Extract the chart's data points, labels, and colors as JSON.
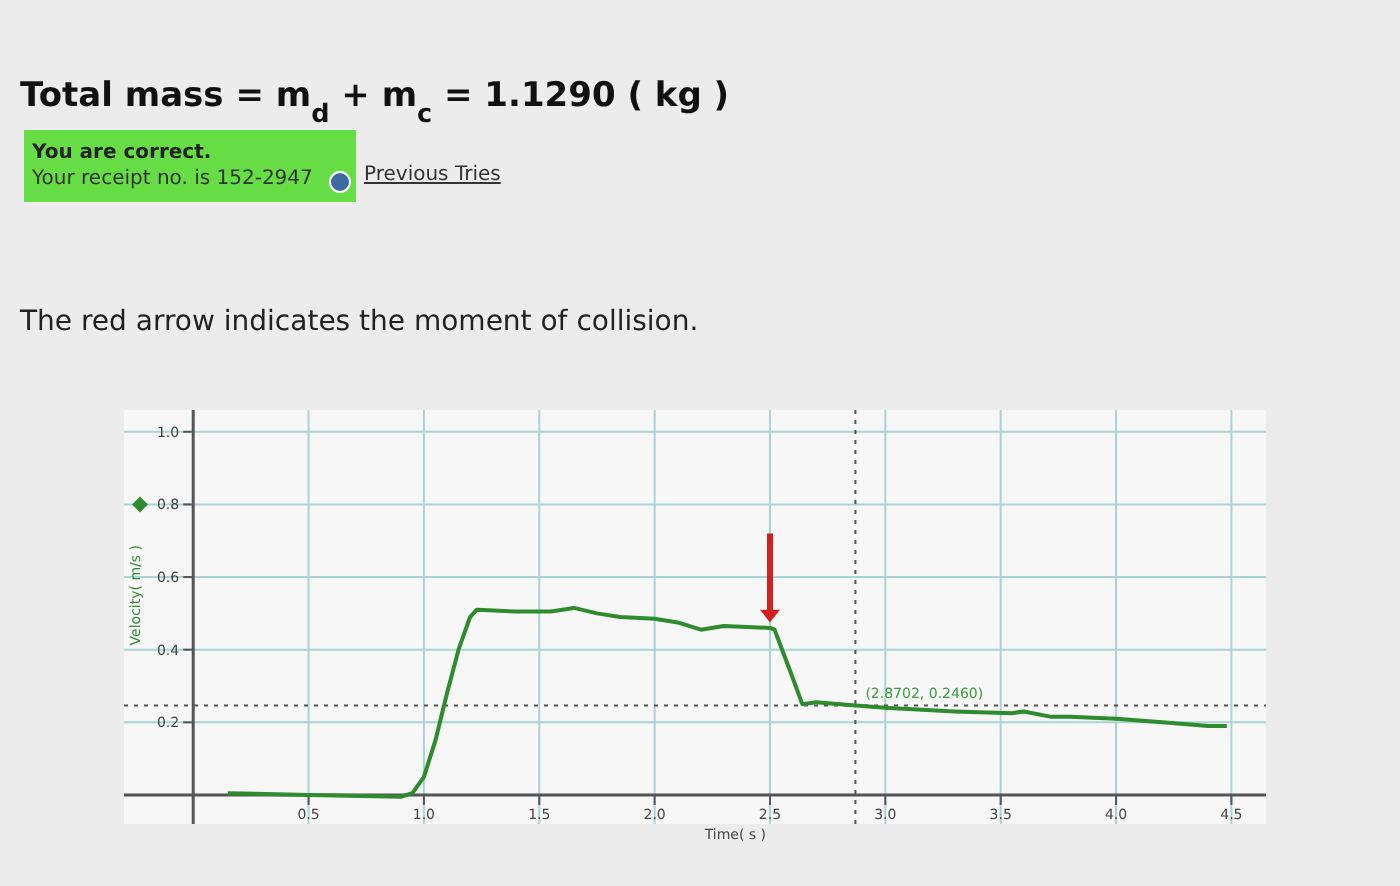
{
  "chart_data": {
    "type": "line",
    "title": "Total mass = m$_{d}$ + m$_{c}$ = 1.1290 ( kg )",
    "annotations": [
      "You are correct.",
      "Your receipt no. is 152-2947",
      "Previous Tries",
      "The red arrow indicates the moment of collision.",
      {
        "text": "(2.8702, 0.2460)",
        "x": 2.8702,
        "y": 0.246
      }
    ],
    "xlabel": "Time( s )",
    "ylabel": "Velocity( m/s )",
    "xlim": [
      -0.3,
      4.65
    ],
    "ylim": [
      -0.08,
      1.06
    ],
    "xticks": [
      0.5,
      {
        "value": 1,
        "label": "1.0"
      },
      1.5,
      {
        "value": 2,
        "label": "2.0"
      },
      2.5,
      {
        "value": 3,
        "label": "3.0"
      },
      3.5,
      {
        "value": 4,
        "label": "4.0"
      },
      4.5
    ],
    "yticks": [
      0.2,
      0.4,
      0.6,
      0.8,
      {
        "value": 1,
        "label": "1.0"
      }
    ],
    "grid": true,
    "marker": "none",
    "line_style": "solid",
    "ref_lines": [
      {
        "axis": "x",
        "value": 2.8702,
        "line_style": "dotted",
        "color": "#555555"
      },
      {
        "axis": "y",
        "value": 0.246,
        "line_style": "dotted",
        "color": "#555555"
      }
    ],
    "series": [
      {
        "color": "#2e8b2e",
        "x": [
          0.15,
          0.5,
          0.9,
          0.95,
          1.0,
          1.05,
          1.1,
          1.15,
          1.2,
          1.23,
          1.4,
          1.55,
          1.65,
          1.75,
          1.85,
          2.0,
          2.1,
          2.2,
          2.3,
          2.5,
          2.52,
          2.6,
          2.64,
          2.7,
          2.87,
          3.0,
          3.3,
          3.55,
          3.6,
          3.72,
          3.8,
          4.0,
          4.2,
          4.4,
          4.48
        ],
        "values": [
          0.005,
          0.0,
          -0.005,
          0.005,
          0.05,
          0.15,
          0.28,
          0.4,
          0.49,
          0.51,
          0.505,
          0.505,
          0.515,
          0.5,
          0.49,
          0.485,
          0.475,
          0.455,
          0.465,
          0.46,
          0.455,
          0.32,
          0.25,
          0.255,
          0.246,
          0.24,
          0.23,
          0.225,
          0.23,
          0.215,
          0.215,
          0.21,
          0.2,
          0.19,
          0.19
        ]
      }
    ]
  }
}
